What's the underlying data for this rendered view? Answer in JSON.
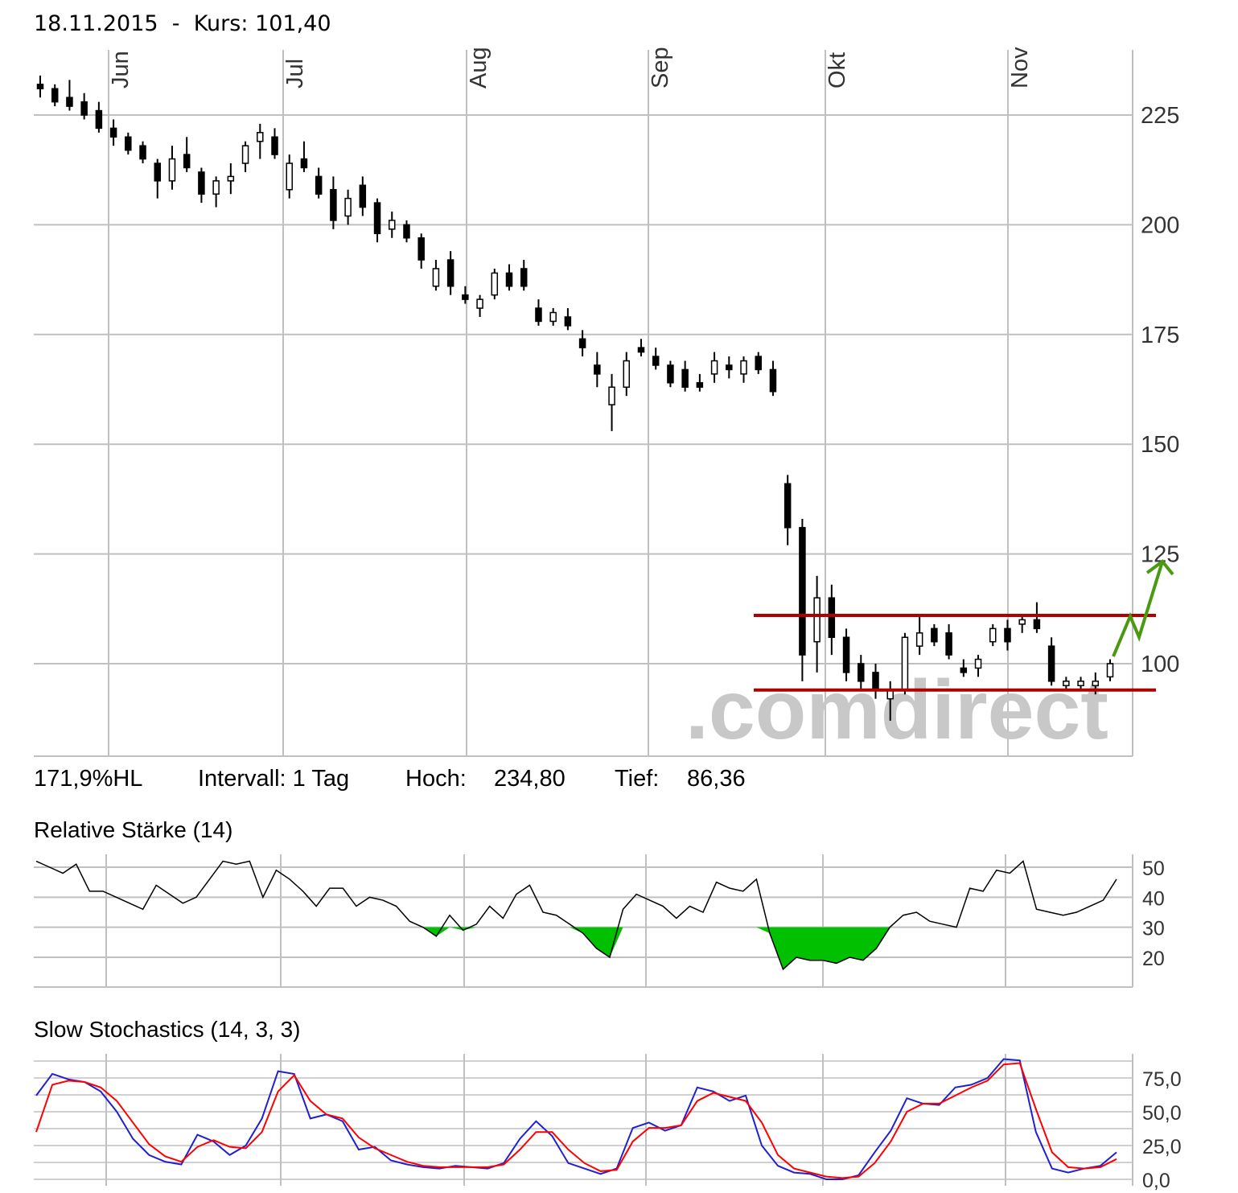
{
  "header": {
    "date": "18.11.2015",
    "separator": "-",
    "kurs_label": "Kurs:",
    "kurs_value": "101,40"
  },
  "stats": {
    "range": "171,9%HL",
    "interval": "Intervall: 1 Tag",
    "high_label": "Hoch:",
    "high_value": "234,80",
    "low_label": "Tief:",
    "low_value": "86,36"
  },
  "watermark": ".comdirect",
  "colors": {
    "grid": "#c0c0c0",
    "support": "#b00000",
    "arrow": "#4a9a10",
    "rsi_fill": "#00c000",
    "stoch_k": "#2020d0",
    "stoch_d": "#ff0000"
  },
  "chart_data": [
    {
      "type": "candlestick",
      "x_ticks": [
        "Jun",
        "Jul",
        "Aug",
        "Sep",
        "Okt",
        "Nov"
      ],
      "ylim": [
        80,
        235
      ],
      "y_ticks": [
        100,
        125,
        150,
        175,
        200,
        225
      ],
      "support_lines": [
        111,
        94
      ],
      "grid": true,
      "series": [
        {
          "o": 232,
          "h": 234,
          "l": 229,
          "c": 231
        },
        {
          "o": 231,
          "h": 232,
          "l": 227,
          "c": 228
        },
        {
          "o": 229,
          "h": 233,
          "l": 226,
          "c": 227
        },
        {
          "o": 228,
          "h": 230,
          "l": 224,
          "c": 225
        },
        {
          "o": 226,
          "h": 228,
          "l": 221,
          "c": 222
        },
        {
          "o": 222,
          "h": 224,
          "l": 218,
          "c": 220
        },
        {
          "o": 220,
          "h": 221,
          "l": 216,
          "c": 217
        },
        {
          "o": 218,
          "h": 219,
          "l": 214,
          "c": 215
        },
        {
          "o": 214,
          "h": 215,
          "l": 206,
          "c": 210
        },
        {
          "o": 210,
          "h": 218,
          "l": 208,
          "c": 215
        },
        {
          "o": 216,
          "h": 220,
          "l": 212,
          "c": 213
        },
        {
          "o": 212,
          "h": 213,
          "l": 205,
          "c": 207
        },
        {
          "o": 207,
          "h": 211,
          "l": 204,
          "c": 210
        },
        {
          "o": 210,
          "h": 214,
          "l": 207,
          "c": 211
        },
        {
          "o": 214,
          "h": 219,
          "l": 212,
          "c": 218
        },
        {
          "o": 219,
          "h": 223,
          "l": 215,
          "c": 221
        },
        {
          "o": 220,
          "h": 222,
          "l": 215,
          "c": 216
        },
        {
          "o": 208,
          "h": 216,
          "l": 206,
          "c": 214
        },
        {
          "o": 215,
          "h": 219,
          "l": 212,
          "c": 213
        },
        {
          "o": 211,
          "h": 213,
          "l": 206,
          "c": 207
        },
        {
          "o": 208,
          "h": 211,
          "l": 199,
          "c": 201
        },
        {
          "o": 202,
          "h": 208,
          "l": 200,
          "c": 206
        },
        {
          "o": 209,
          "h": 211,
          "l": 202,
          "c": 204
        },
        {
          "o": 205,
          "h": 206,
          "l": 196,
          "c": 198
        },
        {
          "o": 199,
          "h": 203,
          "l": 197,
          "c": 201
        },
        {
          "o": 200,
          "h": 201,
          "l": 196,
          "c": 197
        },
        {
          "o": 197,
          "h": 198,
          "l": 190,
          "c": 192
        },
        {
          "o": 186,
          "h": 192,
          "l": 185,
          "c": 190
        },
        {
          "o": 192,
          "h": 194,
          "l": 184,
          "c": 186
        },
        {
          "o": 184,
          "h": 186,
          "l": 182,
          "c": 183
        },
        {
          "o": 181,
          "h": 184,
          "l": 179,
          "c": 183
        },
        {
          "o": 184,
          "h": 190,
          "l": 183,
          "c": 189
        },
        {
          "o": 189,
          "h": 191,
          "l": 185,
          "c": 186
        },
        {
          "o": 190,
          "h": 192,
          "l": 185,
          "c": 186
        },
        {
          "o": 181,
          "h": 183,
          "l": 177,
          "c": 178
        },
        {
          "o": 178,
          "h": 181,
          "l": 177,
          "c": 180
        },
        {
          "o": 179,
          "h": 181,
          "l": 176,
          "c": 177
        },
        {
          "o": 174,
          "h": 176,
          "l": 170,
          "c": 172
        },
        {
          "o": 168,
          "h": 171,
          "l": 163,
          "c": 166
        },
        {
          "o": 159,
          "h": 166,
          "l": 153,
          "c": 163
        },
        {
          "o": 163,
          "h": 171,
          "l": 161,
          "c": 169
        },
        {
          "o": 172,
          "h": 174,
          "l": 170,
          "c": 171
        },
        {
          "o": 170,
          "h": 172,
          "l": 167,
          "c": 168
        },
        {
          "o": 168,
          "h": 169,
          "l": 163,
          "c": 164
        },
        {
          "o": 167,
          "h": 169,
          "l": 162,
          "c": 163
        },
        {
          "o": 164,
          "h": 166,
          "l": 162,
          "c": 163
        },
        {
          "o": 166,
          "h": 171,
          "l": 164,
          "c": 169
        },
        {
          "o": 168,
          "h": 170,
          "l": 165,
          "c": 167
        },
        {
          "o": 166,
          "h": 170,
          "l": 164,
          "c": 169
        },
        {
          "o": 170,
          "h": 171,
          "l": 166,
          "c": 167
        },
        {
          "o": 167,
          "h": 169,
          "l": 161,
          "c": 162
        },
        {
          "o": 141,
          "h": 143,
          "l": 127,
          "c": 131
        },
        {
          "o": 131,
          "h": 133,
          "l": 96,
          "c": 102
        },
        {
          "o": 105,
          "h": 120,
          "l": 98,
          "c": 115
        },
        {
          "o": 115,
          "h": 118,
          "l": 102,
          "c": 106
        },
        {
          "o": 106,
          "h": 108,
          "l": 96,
          "c": 98
        },
        {
          "o": 100,
          "h": 102,
          "l": 94,
          "c": 96
        },
        {
          "o": 98,
          "h": 100,
          "l": 92,
          "c": 94
        },
        {
          "o": 92,
          "h": 96,
          "l": 87,
          "c": 94
        },
        {
          "o": 94,
          "h": 107,
          "l": 93,
          "c": 106
        },
        {
          "o": 104,
          "h": 111,
          "l": 102,
          "c": 107
        },
        {
          "o": 108,
          "h": 109,
          "l": 104,
          "c": 105
        },
        {
          "o": 107,
          "h": 109,
          "l": 101,
          "c": 102
        },
        {
          "o": 99,
          "h": 101,
          "l": 97,
          "c": 98
        },
        {
          "o": 99,
          "h": 102,
          "l": 97,
          "c": 101
        },
        {
          "o": 105,
          "h": 109,
          "l": 104,
          "c": 108
        },
        {
          "o": 108,
          "h": 110,
          "l": 103,
          "c": 105
        },
        {
          "o": 109,
          "h": 111,
          "l": 107,
          "c": 110
        },
        {
          "o": 110,
          "h": 114,
          "l": 107,
          "c": 108
        },
        {
          "o": 104,
          "h": 106,
          "l": 95,
          "c": 96
        },
        {
          "o": 95,
          "h": 97,
          "l": 94,
          "c": 96
        },
        {
          "o": 95,
          "h": 97,
          "l": 94,
          "c": 96
        },
        {
          "o": 95,
          "h": 98,
          "l": 93,
          "c": 96
        },
        {
          "o": 97,
          "h": 101,
          "l": 96,
          "c": 100
        }
      ]
    },
    {
      "type": "area",
      "title": "Relative Stärke (14)",
      "x_ticks": [
        "Jun",
        "Jul",
        "Aug",
        "Sep",
        "Okt",
        "Nov"
      ],
      "ylim": [
        11,
        53
      ],
      "y_ticks": [
        20,
        30,
        40,
        50
      ],
      "threshold": 30,
      "values": [
        52,
        50,
        48,
        51,
        42,
        42,
        40,
        38,
        36,
        44,
        41,
        38,
        40,
        46,
        52,
        51,
        52,
        40,
        49,
        46,
        42,
        37,
        43,
        43,
        37,
        40,
        39,
        37,
        32,
        30,
        27,
        34,
        29,
        31,
        37,
        33,
        41,
        44,
        35,
        34,
        31,
        28,
        23,
        20,
        36,
        41,
        39,
        37,
        33,
        37,
        35,
        45,
        43,
        42,
        46,
        28,
        16,
        20,
        19,
        19,
        18,
        20,
        19,
        23,
        30,
        34,
        35,
        32,
        31,
        30,
        43,
        42,
        49,
        48,
        52,
        36,
        35,
        34,
        35,
        37,
        39,
        46
      ]
    },
    {
      "type": "line",
      "title": "Slow Stochastics (14, 3, 3)",
      "x_ticks": [
        "Jun",
        "Jul",
        "Aug",
        "Sep",
        "Okt",
        "Nov"
      ],
      "ylim": [
        -2,
        90
      ],
      "y_ticks": [
        "0,0",
        "25,0",
        "50,0",
        "75,0"
      ],
      "series": [
        {
          "name": "%K",
          "values": [
            62,
            78,
            74,
            72,
            65,
            50,
            30,
            18,
            13,
            11,
            33,
            28,
            18,
            25,
            45,
            80,
            78,
            45,
            48,
            43,
            22,
            24,
            14,
            11,
            9,
            8,
            10,
            9,
            8,
            12,
            30,
            43,
            32,
            12,
            8,
            4,
            8,
            38,
            42,
            36,
            40,
            68,
            65,
            58,
            62,
            25,
            10,
            5,
            4,
            0,
            0,
            3,
            20,
            36,
            60,
            56,
            55,
            68,
            70,
            75,
            89,
            88,
            35,
            8,
            5,
            8,
            10,
            20
          ]
        },
        {
          "name": "%D",
          "values": [
            35,
            70,
            73,
            72,
            68,
            58,
            42,
            26,
            17,
            13,
            24,
            29,
            24,
            23,
            35,
            65,
            77,
            58,
            48,
            45,
            31,
            23,
            18,
            13,
            10,
            9,
            9,
            9,
            9,
            11,
            22,
            35,
            35,
            22,
            12,
            6,
            7,
            28,
            38,
            38,
            40,
            58,
            64,
            61,
            58,
            42,
            18,
            8,
            5,
            2,
            1,
            2,
            12,
            28,
            50,
            56,
            56,
            62,
            68,
            73,
            85,
            86,
            52,
            20,
            9,
            8,
            9,
            15
          ]
        }
      ]
    }
  ]
}
